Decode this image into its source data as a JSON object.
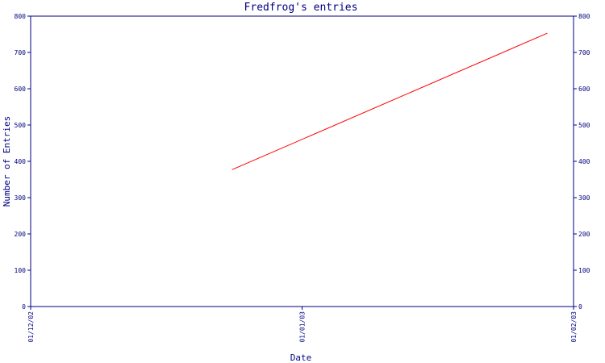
{
  "chart_data": {
    "type": "line",
    "title": "Fredfrog's entries",
    "xlabel": "Date",
    "ylabel": "Number of Entries",
    "x_ticks": [
      "01/12/02",
      "01/01/03",
      "01/02/03"
    ],
    "xlim": [
      "01/12/02",
      "01/02/03"
    ],
    "ylim": [
      0,
      800
    ],
    "y_ticks": [
      0,
      100,
      200,
      300,
      400,
      500,
      600,
      700,
      800
    ],
    "grid": false,
    "legend": "none",
    "colors": {
      "axis": "#000080",
      "line": "#ff0000",
      "text": "#000080"
    },
    "series": [
      {
        "x": [
          "24/12/02",
          "29/01/03"
        ],
        "y": [
          377,
          753
        ]
      }
    ]
  }
}
